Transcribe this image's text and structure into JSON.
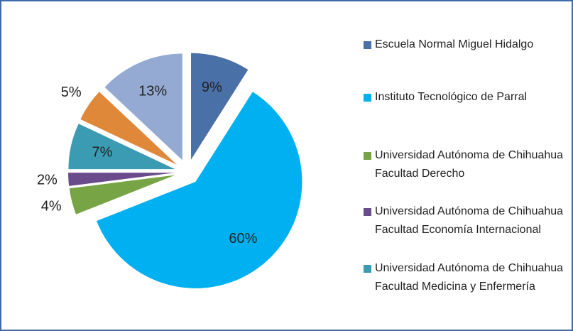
{
  "chart_data": {
    "type": "pie",
    "categories": [
      "Escuela Normal Miguel Hidalgo",
      "Instituto Tecnológico de Parral",
      "Universidad Autónoma de Chihuahua Facultad Derecho",
      "Universidad Autónoma de Chihuahua Facultad Economía Internacional",
      "Universidad Autónoma de Chihuahua Facultad Medicina y Enfermería",
      null,
      null
    ],
    "values": [
      9,
      60,
      4,
      2,
      7,
      5,
      13
    ],
    "value_labels": [
      "9%",
      "60%",
      "4%",
      "2%",
      "7%",
      "5%",
      "13%"
    ],
    "colors": [
      "#4a70a8",
      "#00b0f0",
      "#77a444",
      "#6a4c8c",
      "#3b9bb2",
      "#e0883a",
      "#95aad3"
    ]
  }
}
